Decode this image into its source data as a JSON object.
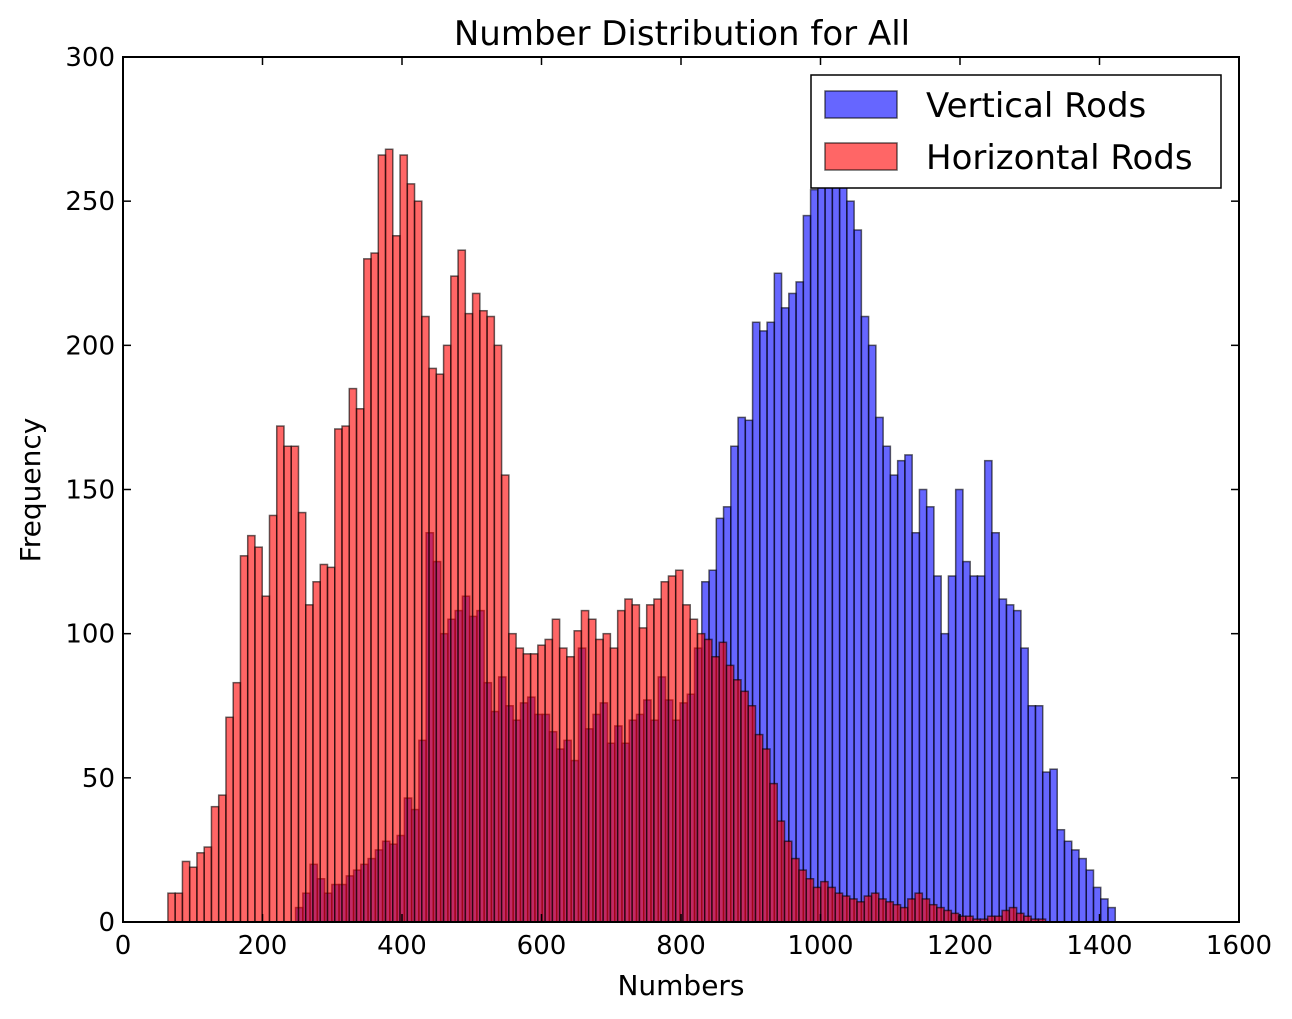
{
  "chart_data": {
    "type": "bar",
    "title": "Number Distribution for All",
    "xlabel": "Numbers",
    "ylabel": "Frequency",
    "xlim": [
      0,
      1600
    ],
    "ylim": [
      0,
      300
    ],
    "xticks": [
      0,
      200,
      400,
      600,
      800,
      1000,
      1200,
      1400,
      1600
    ],
    "yticks": [
      0,
      50,
      100,
      150,
      200,
      250,
      300
    ],
    "bin_width": 10.4,
    "legend_position": "top-right",
    "grid": false,
    "series": [
      {
        "name": "Vertical Rods",
        "color": "#0000ff",
        "bin_start": 247.4,
        "values": [
          5,
          10,
          20,
          15,
          10,
          13,
          13,
          16,
          18,
          20,
          22,
          25,
          28,
          27,
          30,
          43,
          39,
          63,
          135,
          125,
          100,
          105,
          108,
          113,
          106,
          108,
          83,
          73,
          85,
          75,
          70,
          76,
          78,
          72,
          72,
          66,
          60,
          63,
          56,
          95,
          67,
          72,
          76,
          62,
          68,
          62,
          70,
          72,
          77,
          70,
          85,
          77,
          70,
          76,
          79,
          95,
          118,
          122,
          140,
          144,
          165,
          175,
          174,
          208,
          205,
          208,
          225,
          213,
          218,
          222,
          245,
          254,
          260,
          270,
          264,
          270,
          250,
          240,
          210,
          200,
          175,
          165,
          155,
          160,
          162,
          135,
          150,
          144,
          120,
          100,
          120,
          150,
          125,
          120,
          120,
          160,
          135,
          112,
          110,
          108,
          95,
          75,
          75,
          52,
          53,
          32,
          28,
          25,
          22,
          18,
          12,
          8,
          5
        ]
      },
      {
        "name": "Horizontal Rods",
        "color": "#ff0000",
        "bin_start": 64.4,
        "values": [
          10,
          10,
          21,
          19,
          24,
          26,
          40,
          44,
          71,
          83,
          127,
          134,
          130,
          113,
          141,
          172,
          165,
          165,
          142,
          110,
          118,
          124,
          123,
          171,
          172,
          185,
          178,
          230,
          232,
          266,
          268,
          238,
          266,
          256,
          250,
          210,
          192,
          190,
          200,
          224,
          233,
          211,
          218,
          212,
          210,
          200,
          155,
          100,
          95,
          93,
          93,
          96,
          98,
          105,
          95,
          92,
          101,
          108,
          105,
          98,
          100,
          95,
          108,
          112,
          110,
          102,
          110,
          112,
          118,
          120,
          122,
          110,
          105,
          100,
          98,
          92,
          97,
          89,
          84,
          80,
          75,
          65,
          60,
          48,
          35,
          28,
          22,
          18,
          15,
          12,
          14,
          12,
          10,
          9,
          8,
          7,
          9,
          10,
          8,
          7,
          6,
          5,
          8,
          10,
          8,
          6,
          5,
          4,
          3,
          2,
          2,
          1,
          1,
          2,
          2,
          4,
          5,
          3,
          2,
          1,
          1
        ]
      }
    ]
  }
}
